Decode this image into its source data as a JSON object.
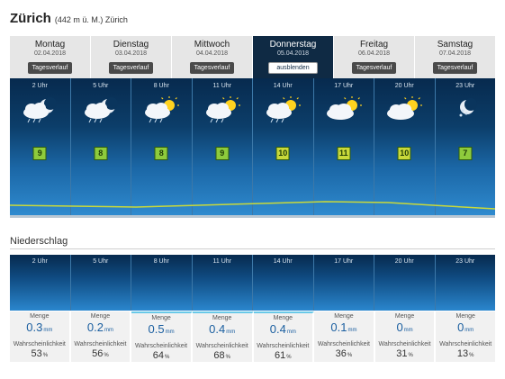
{
  "header": {
    "city": "Zürich",
    "meta": "(442 m ü. M.) Zürich"
  },
  "days": [
    {
      "name": "Montag",
      "date": "02.04.2018",
      "button": "Tagesverlauf",
      "active": false
    },
    {
      "name": "Dienstag",
      "date": "03.04.2018",
      "button": "Tagesverlauf",
      "active": false
    },
    {
      "name": "Mittwoch",
      "date": "04.04.2018",
      "button": "Tagesverlauf",
      "active": false
    },
    {
      "name": "Donnerstag",
      "date": "05.04.2018",
      "button": "ausblenden",
      "active": true
    },
    {
      "name": "Freitag",
      "date": "06.04.2018",
      "button": "Tagesverlauf",
      "active": false
    },
    {
      "name": "Samstag",
      "date": "07.04.2018",
      "button": "Tagesverlauf",
      "active": false
    }
  ],
  "hourly": [
    {
      "hour": "2 Uhr",
      "icon": "night-cloud-rain-icon",
      "temp": "9"
    },
    {
      "hour": "5 Uhr",
      "icon": "night-cloud-rain-icon",
      "temp": "8"
    },
    {
      "hour": "8 Uhr",
      "icon": "sun-cloud-rain-icon",
      "temp": "8"
    },
    {
      "hour": "11 Uhr",
      "icon": "sun-cloud-rain-icon",
      "temp": "9"
    },
    {
      "hour": "14 Uhr",
      "icon": "sun-cloud-rain-icon",
      "temp": "10"
    },
    {
      "hour": "17 Uhr",
      "icon": "sun-cloud-icon",
      "temp": "11"
    },
    {
      "hour": "20 Uhr",
      "icon": "sun-cloud-icon",
      "temp": "10"
    },
    {
      "hour": "23 Uhr",
      "icon": "night-rain-icon",
      "temp": "7"
    }
  ],
  "precip": {
    "section_title": "Niederschlag",
    "amount_label": "Menge",
    "prob_label": "Wahrscheinlichkeit",
    "amount_unit": "mm",
    "prob_unit": "%",
    "items": [
      {
        "hour": "2 Uhr",
        "amount": "0.3",
        "prob": "53"
      },
      {
        "hour": "5 Uhr",
        "amount": "0.2",
        "prob": "56"
      },
      {
        "hour": "8 Uhr",
        "amount": "0.5",
        "prob": "64"
      },
      {
        "hour": "11 Uhr",
        "amount": "0.4",
        "prob": "68"
      },
      {
        "hour": "14 Uhr",
        "amount": "0.4",
        "prob": "61"
      },
      {
        "hour": "17 Uhr",
        "amount": "0.1",
        "prob": "36"
      },
      {
        "hour": "20 Uhr",
        "amount": "0",
        "prob": "31"
      },
      {
        "hour": "23 Uhr",
        "amount": "0",
        "prob": "13"
      }
    ]
  }
}
